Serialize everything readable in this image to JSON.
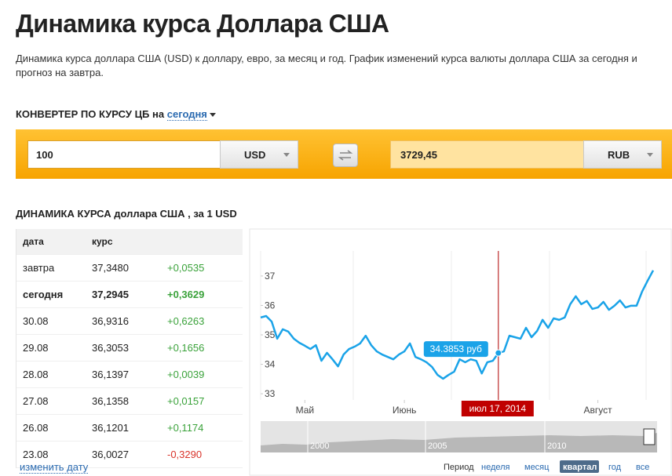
{
  "header": {
    "title": "Динамика курса Доллара США",
    "description": "Динамика курса доллара США (USD) к доллару, евро, за месяц и год. График изменений курса валюты доллара США за сегодня и прогноз на завтра."
  },
  "converter": {
    "heading": "КОНВЕРТЕР ПО КУРСУ ЦБ на",
    "date_link": "сегодня",
    "amount": "100",
    "from_currency": "USD",
    "result": "3729,45",
    "to_currency": "RUB"
  },
  "table": {
    "heading": "ДИНАМИКА КУРСА доллара США , за 1 USD",
    "columns": [
      "дата",
      "курс"
    ],
    "rows": [
      [
        "завтра",
        "37,3480",
        "+0,0535"
      ],
      [
        "сегодня",
        "37,2945",
        "+0,3629"
      ],
      [
        "30.08",
        "36,9316",
        "+0,6263"
      ],
      [
        "29.08",
        "36,3053",
        "+0,1656"
      ],
      [
        "28.08",
        "36,1397",
        "+0,0039"
      ],
      [
        "27.08",
        "36,1358",
        "+0,0157"
      ],
      [
        "26.08",
        "36,1201",
        "+0,1174"
      ],
      [
        "23.08",
        "36,0027",
        "-0,3290"
      ]
    ],
    "footer_link": "изменить дату"
  },
  "chart_data": {
    "type": "line",
    "series": [
      {
        "color": "#1aa3e8",
        "values": [
          35.59,
          35.64,
          35.45,
          34.87,
          35.19,
          35.11,
          34.87,
          34.73,
          34.63,
          34.52,
          34.65,
          34.12,
          34.39,
          34.17,
          33.93,
          34.33,
          34.52,
          34.6,
          34.71,
          34.97,
          34.65,
          34.44,
          34.33,
          34.25,
          34.17,
          34.33,
          34.44,
          34.71,
          34.25,
          34.17,
          34.07,
          33.91,
          33.64,
          33.51,
          33.64,
          33.75,
          34.17,
          34.07,
          34.17,
          34.12,
          33.69,
          34.07,
          34.12,
          34.3853,
          34.44,
          34.97,
          34.92,
          34.87,
          35.24,
          34.92,
          35.13,
          35.51,
          35.24,
          35.56,
          35.51,
          35.59,
          36.04,
          36.31,
          36.04,
          36.15,
          35.88,
          35.93,
          36.12,
          35.85,
          35.99,
          36.17,
          35.93,
          35.99,
          35.99,
          36.47,
          36.84,
          37.19
        ]
      }
    ],
    "xlim": [
      0,
      71
    ],
    "xticks": [
      {
        "value": 8,
        "label": "Май"
      },
      {
        "value": 26,
        "label": "Июнь"
      },
      {
        "value": 61,
        "label": "Август"
      }
    ],
    "ylim": [
      32.79,
      37.85
    ],
    "yticks": [
      33,
      34,
      35,
      36,
      37
    ],
    "tooltip_label": "34.3853 руб",
    "crosshair_label": "июл 17, 2014",
    "navigator_labels": [
      "2000",
      "2005",
      "2010"
    ]
  },
  "range_selector": {
    "label": "Период",
    "options": [
      "неделя",
      "месяц",
      "квартал",
      "год",
      "все"
    ]
  }
}
